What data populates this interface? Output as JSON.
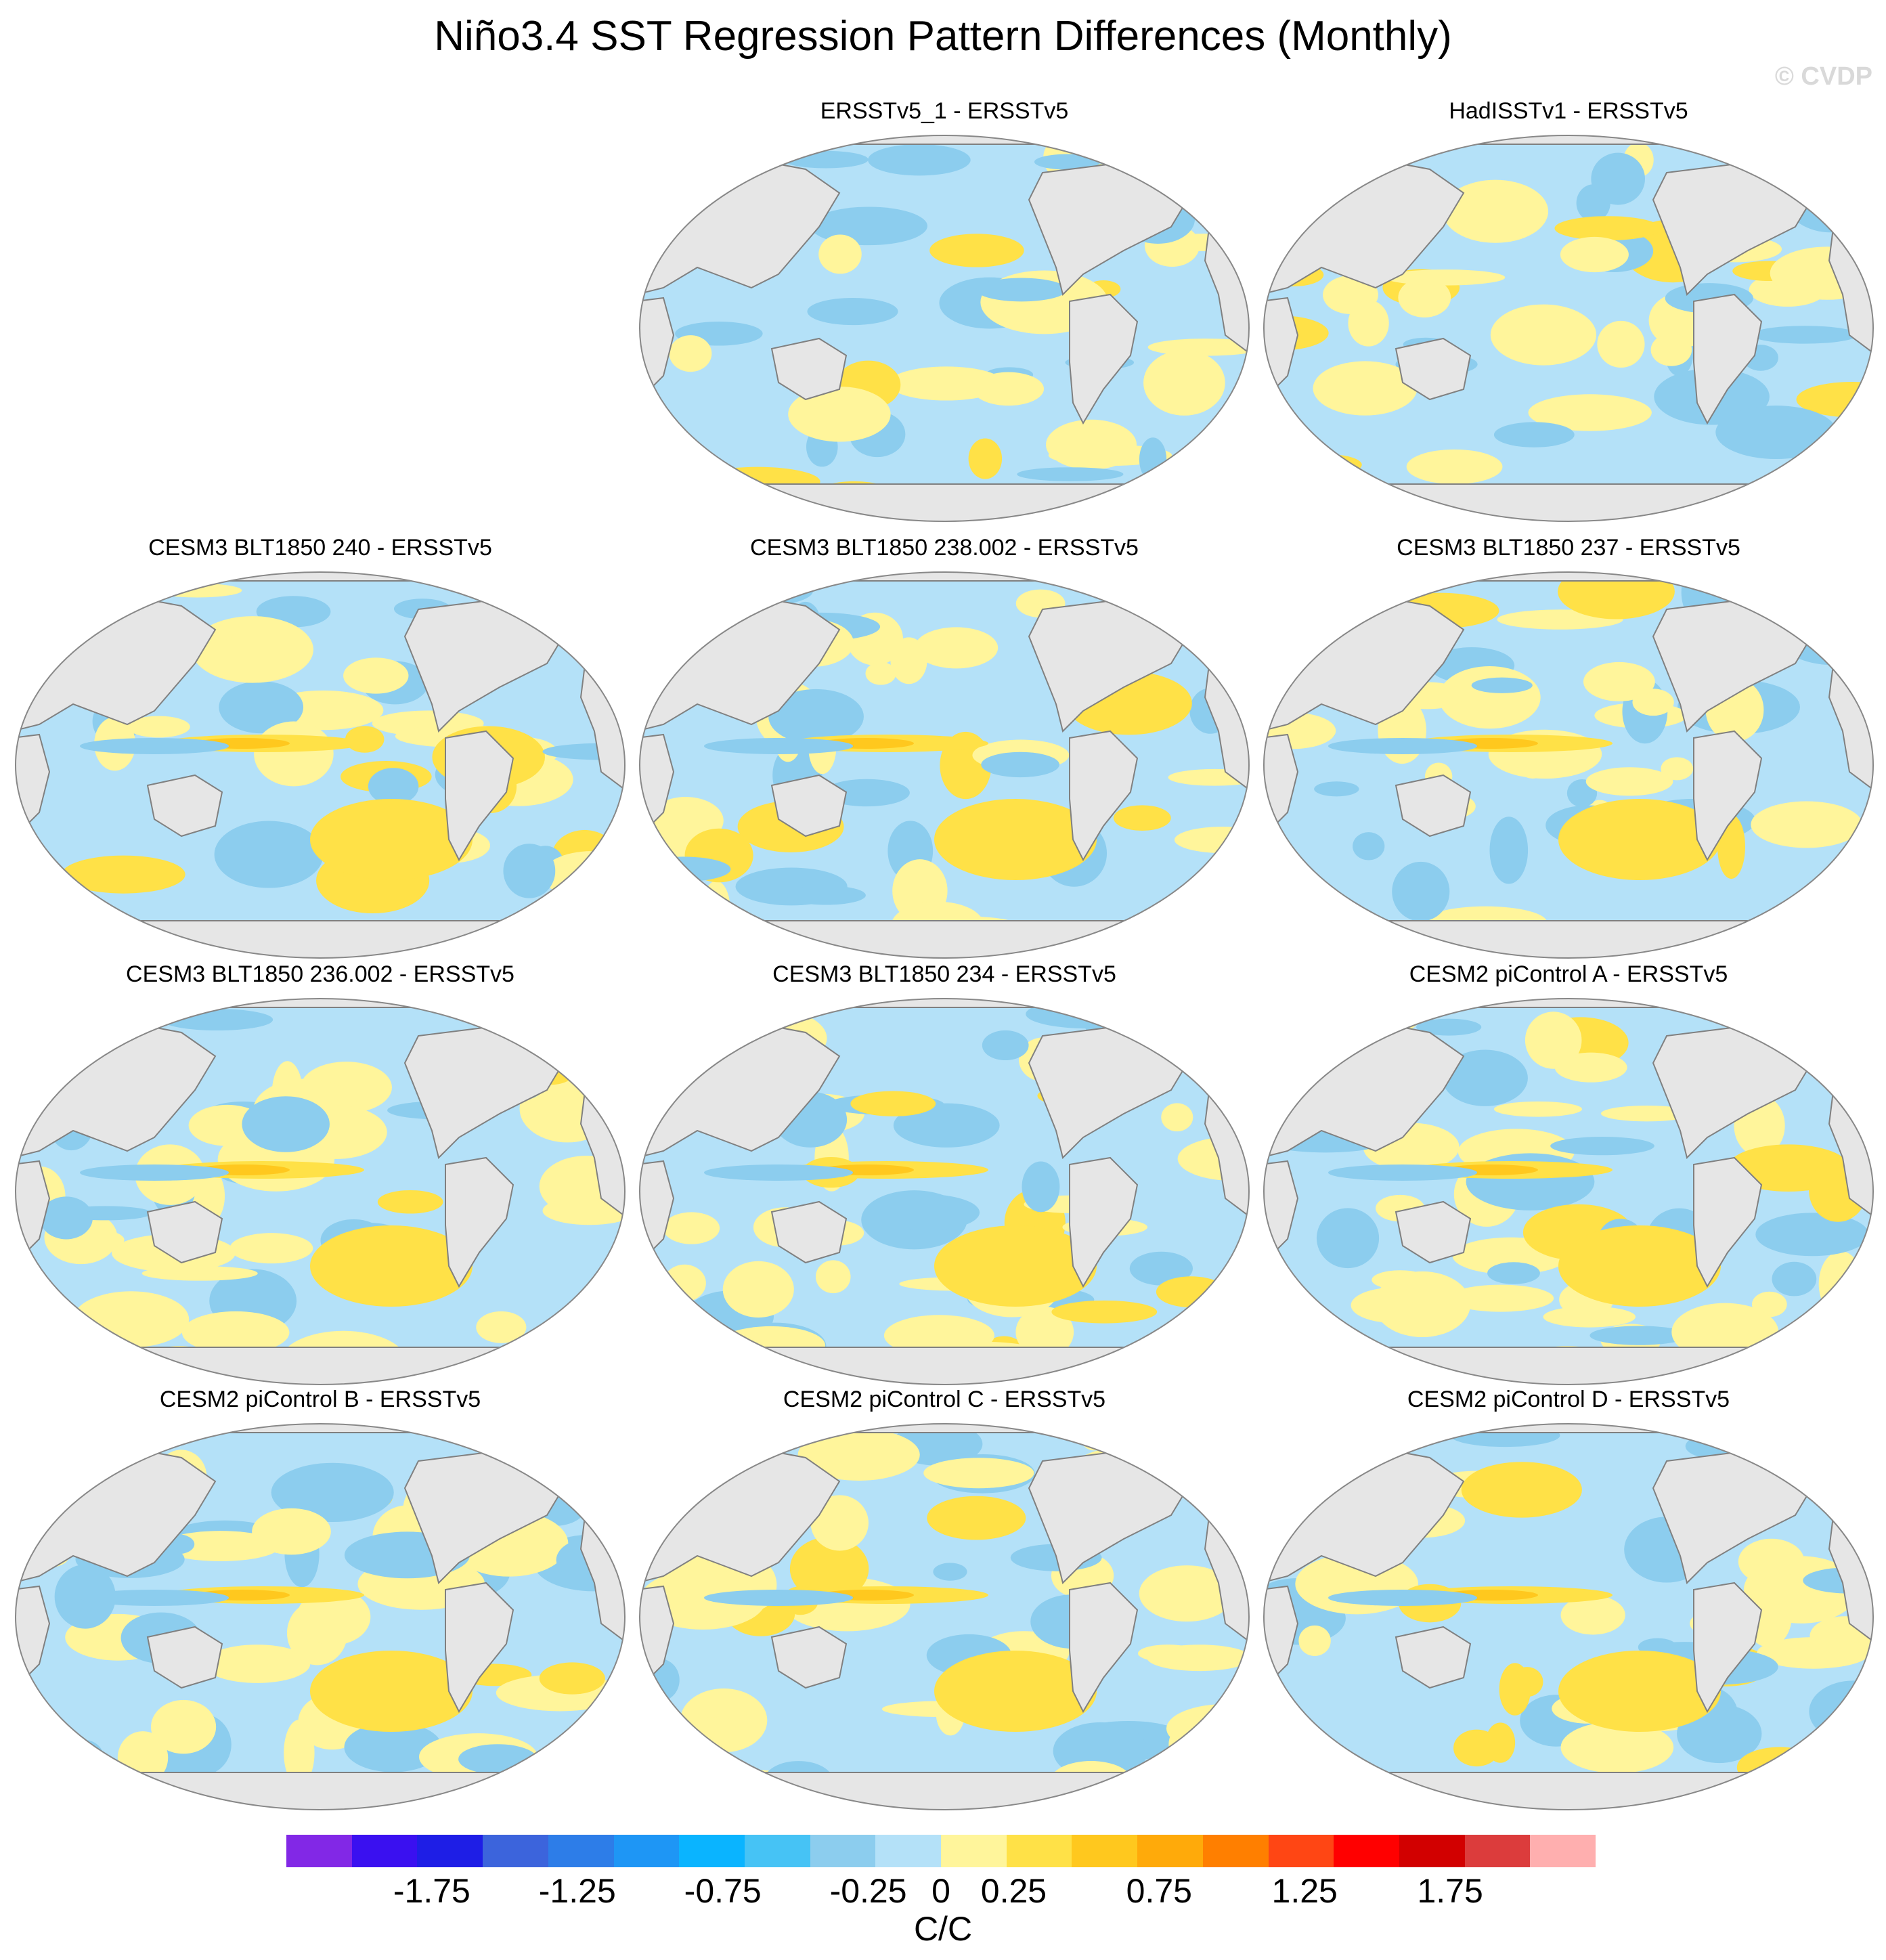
{
  "title": "Niño3.4 SST Regression Pattern Differences (Monthly)",
  "watermark": "© CVDP",
  "panels": [
    {
      "title": "ERSSTv5_1 - ERSSTv5",
      "variant": 1
    },
    {
      "title": "HadISSTv1 - ERSSTv5",
      "variant": 2
    },
    {
      "title": "CESM3 BLT1850 240 - ERSSTv5",
      "variant": 3
    },
    {
      "title": "CESM3 BLT1850 238.002 - ERSSTv5",
      "variant": 4
    },
    {
      "title": "CESM3 BLT1850 237 - ERSSTv5",
      "variant": 5
    },
    {
      "title": "CESM3 BLT1850 236.002 - ERSSTv5",
      "variant": 6
    },
    {
      "title": "CESM3 BLT1850 234 - ERSSTv5",
      "variant": 7
    },
    {
      "title": "CESM2 piControl A - ERSSTv5",
      "variant": 8
    },
    {
      "title": "CESM2 piControl B - ERSSTv5",
      "variant": 9
    },
    {
      "title": "CESM2 piControl C - ERSSTv5",
      "variant": 10
    },
    {
      "title": "CESM2 piControl D - ERSSTv5",
      "variant": 11
    }
  ],
  "colorbar": {
    "colors": [
      "#8228e6",
      "#3a10f0",
      "#1e1ee6",
      "#3c64dc",
      "#2d7de8",
      "#1e96f5",
      "#0ab4ff",
      "#46c3f5",
      "#8ccdee",
      "#b4e1f8",
      "#fff59b",
      "#ffe147",
      "#ffc81e",
      "#ffaa0a",
      "#ff7f00",
      "#ff4614",
      "#ff0000",
      "#d20000",
      "#dc3c3c",
      "#ffafaf"
    ],
    "tick_labels": [
      "-1.75",
      "-1.25",
      "-0.75",
      "-0.25",
      "0",
      "0.25",
      "0.75",
      "1.25",
      "1.75"
    ],
    "tick_values": [
      -1.75,
      -1.25,
      -0.75,
      -0.25,
      0,
      0.25,
      0.75,
      1.25,
      1.75
    ],
    "range": [
      -2.25,
      2.25
    ],
    "units": "C/C"
  },
  "map_colors": {
    "land": "#e6e6e6",
    "coast": "#808080",
    "pale_blue": "#b4e1f8",
    "mid_blue": "#8ccdee",
    "blue": "#46c3f5",
    "yellow": "#fff59b",
    "gold": "#ffe147",
    "orange": "#ffc81e",
    "dark_orange": "#ffaa0a"
  }
}
